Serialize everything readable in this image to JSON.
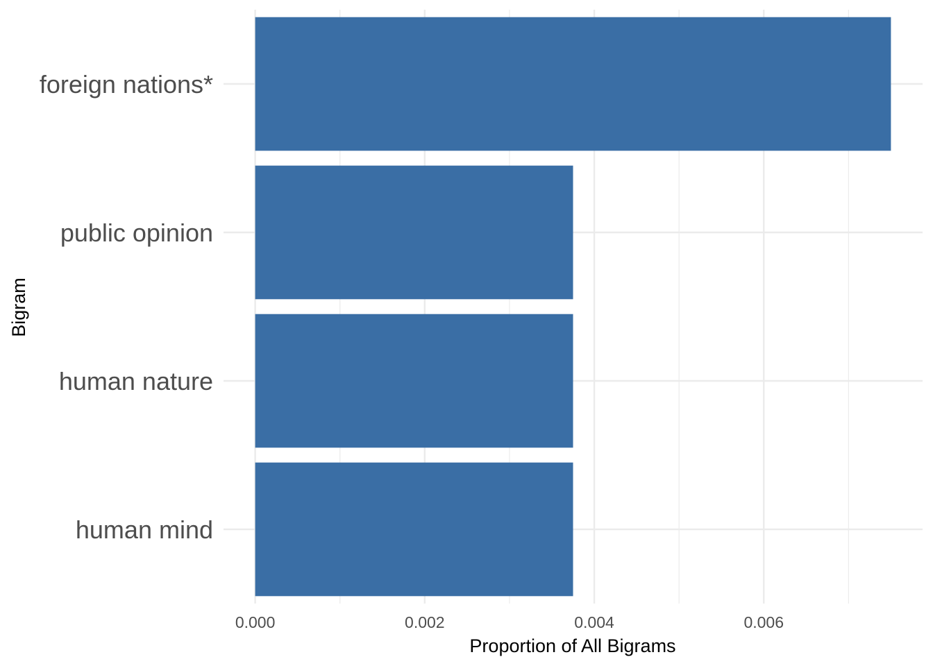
{
  "chart_data": {
    "type": "bar",
    "orientation": "horizontal",
    "title": "",
    "xlabel": "Proportion of All Bigrams",
    "ylabel": "Bigram",
    "categories": [
      "foreign nations*",
      "public opinion",
      "human nature",
      "human mind"
    ],
    "values": [
      0.0075,
      0.00375,
      0.00375,
      0.00375
    ],
    "xlim": [
      -0.0003735,
      0.0078735
    ],
    "xticks": [
      0,
      0.002,
      0.004,
      0.006
    ],
    "xtick_labels": [
      "0.000",
      "0.002",
      "0.004",
      "0.006"
    ],
    "grid": true,
    "legend": "none",
    "bar_color": "#3a6ea5"
  }
}
